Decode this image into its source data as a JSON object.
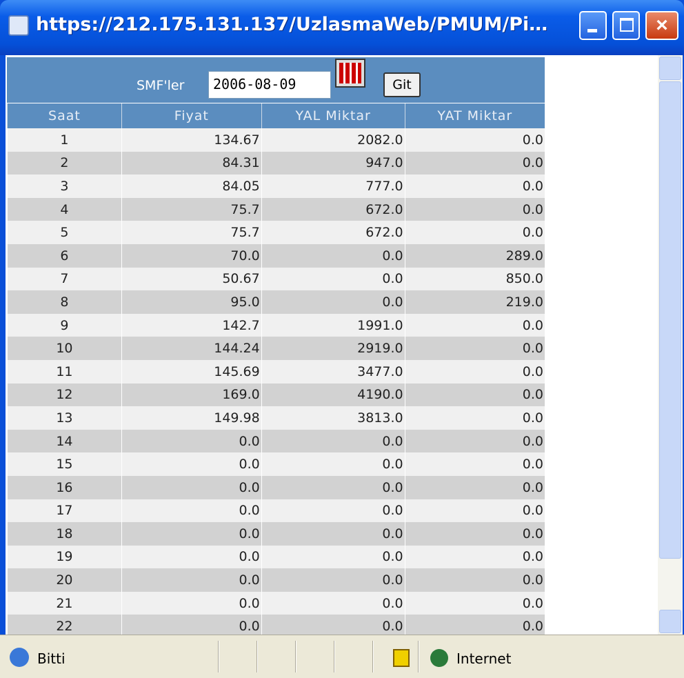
{
  "window": {
    "title": "https://212.175.131.137/UzlasmaWeb/PMUM/Pi…"
  },
  "form": {
    "label": "SMF'ler",
    "date": "2006-08-09",
    "button": "Git"
  },
  "table": {
    "headers": [
      "Saat",
      "Fiyat",
      "YAL Miktar",
      "YAT Miktar"
    ],
    "rows": [
      [
        "1",
        "134.67",
        "2082.0",
        "0.0"
      ],
      [
        "2",
        "84.31",
        "947.0",
        "0.0"
      ],
      [
        "3",
        "84.05",
        "777.0",
        "0.0"
      ],
      [
        "4",
        "75.7",
        "672.0",
        "0.0"
      ],
      [
        "5",
        "75.7",
        "672.0",
        "0.0"
      ],
      [
        "6",
        "70.0",
        "0.0",
        "289.0"
      ],
      [
        "7",
        "50.67",
        "0.0",
        "850.0"
      ],
      [
        "8",
        "95.0",
        "0.0",
        "219.0"
      ],
      [
        "9",
        "142.7",
        "1991.0",
        "0.0"
      ],
      [
        "10",
        "144.24",
        "2919.0",
        "0.0"
      ],
      [
        "11",
        "145.69",
        "3477.0",
        "0.0"
      ],
      [
        "12",
        "169.0",
        "4190.0",
        "0.0"
      ],
      [
        "13",
        "149.98",
        "3813.0",
        "0.0"
      ],
      [
        "14",
        "0.0",
        "0.0",
        "0.0"
      ],
      [
        "15",
        "0.0",
        "0.0",
        "0.0"
      ],
      [
        "16",
        "0.0",
        "0.0",
        "0.0"
      ],
      [
        "17",
        "0.0",
        "0.0",
        "0.0"
      ],
      [
        "18",
        "0.0",
        "0.0",
        "0.0"
      ],
      [
        "19",
        "0.0",
        "0.0",
        "0.0"
      ],
      [
        "20",
        "0.0",
        "0.0",
        "0.0"
      ],
      [
        "21",
        "0.0",
        "0.0",
        "0.0"
      ],
      [
        "22",
        "0.0",
        "0.0",
        "0.0"
      ]
    ]
  },
  "status": {
    "text": "Bitti",
    "zone": "Internet"
  }
}
